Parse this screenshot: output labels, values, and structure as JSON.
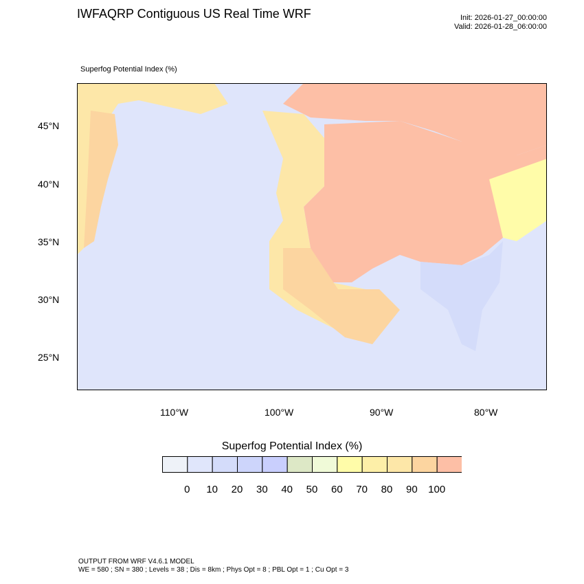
{
  "header": {
    "title": "IWFAQRP Contiguous US Real Time WRF",
    "init": "Init: 2026-01-27_00:00:00",
    "valid": "Valid: 2026-01-28_06:00:00"
  },
  "map": {
    "subtitle": "Superfog Potential Index   (%)",
    "lat_labels": [
      "45°N",
      "40°N",
      "35°N",
      "30°N",
      "25°N"
    ],
    "lon_labels": [
      "110°W",
      "100°W",
      "90°W",
      "80°W"
    ]
  },
  "colorbar": {
    "title": "Superfog Potential Index  (%)",
    "colors": [
      "#eef2f8",
      "#e0e6fb",
      "#d4dcfa",
      "#cdd5fb",
      "#c9cffd",
      "#dde8c6",
      "#f0fad8",
      "#fffca9",
      "#fdefa8",
      "#fde7a8",
      "#fcd5a0",
      "#fdbfa6"
    ],
    "labels": [
      "0",
      "10",
      "20",
      "30",
      "40",
      "50",
      "60",
      "70",
      "80",
      "90",
      "100"
    ]
  },
  "footer": {
    "line1": "OUTPUT FROM WRF V4.6.1 MODEL",
    "line2": "WE = 580 ; SN = 380 ; Levels = 38 ; Dis = 8km ; Phys Opt = 8 ; PBL Opt = 1 ; Cu Opt = 3"
  }
}
